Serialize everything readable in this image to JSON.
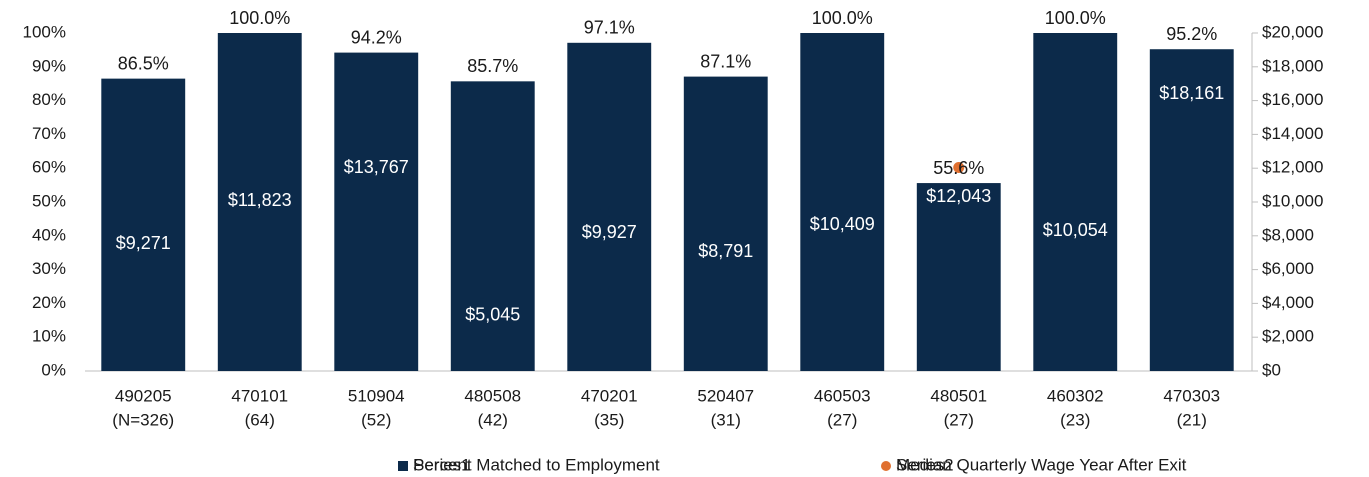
{
  "chart_data": {
    "type": "bar",
    "categories": [
      [
        "490205",
        "(N=326)"
      ],
      [
        "470101",
        "(64)"
      ],
      [
        "510904",
        "(52)"
      ],
      [
        "480508",
        "(42)"
      ],
      [
        "470201",
        "(35)"
      ],
      [
        "520407",
        "(31)"
      ],
      [
        "460503",
        "(27)"
      ],
      [
        "480501",
        "(27)"
      ],
      [
        "460302",
        "(23)"
      ],
      [
        "470303",
        "(21)"
      ]
    ],
    "series": [
      {
        "name": "Percent Matched to Employment",
        "placeholder_name": "Series1",
        "type": "bar",
        "color": "#0c2a4a",
        "values": [
          86.5,
          100,
          94.2,
          85.7,
          97.1,
          87.1,
          100,
          55.6,
          100,
          95.2
        ],
        "value_labels": [
          "86.5%",
          "100.0%",
          "94.2%",
          "85.7%",
          "97.1%",
          "87.1%",
          "100.0%",
          "55.6%",
          "100.0%",
          "95.2%"
        ]
      },
      {
        "name": "Median Quarterly Wage Year After Exit",
        "placeholder_name": "Series2",
        "type": "scatter",
        "axis": "y2",
        "color": "#e07030",
        "values": [
          9271,
          11823,
          13767,
          5045,
          9927,
          8791,
          10409,
          12043,
          10054,
          18161
        ],
        "value_labels": [
          "$9,271",
          "$11,823",
          "$13,767",
          "$5,045",
          "$9,927",
          "$8,791",
          "$10,409",
          "$12,043",
          "$10,054",
          "$18,161"
        ]
      }
    ],
    "ylim": [
      0,
      100
    ],
    "yticks": [
      {
        "value": 0,
        "label": "0%"
      },
      {
        "value": 10,
        "label": "10%"
      },
      {
        "value": 20,
        "label": "20%"
      },
      {
        "value": 30,
        "label": "30%"
      },
      {
        "value": 40,
        "label": "40%"
      },
      {
        "value": 50,
        "label": "50%"
      },
      {
        "value": 60,
        "label": "60%"
      },
      {
        "value": 70,
        "label": "70%"
      },
      {
        "value": 80,
        "label": "80%"
      },
      {
        "value": 90,
        "label": "90%"
      },
      {
        "value": 100,
        "label": "100%"
      }
    ],
    "y2lim": [
      0,
      20000
    ],
    "y2ticks": [
      {
        "value": 0,
        "label": "$0"
      },
      {
        "value": 2000,
        "label": "$2,000"
      },
      {
        "value": 4000,
        "label": "$4,000"
      },
      {
        "value": 6000,
        "label": "$6,000"
      },
      {
        "value": 8000,
        "label": "$8,000"
      },
      {
        "value": 10000,
        "label": "$10,000"
      },
      {
        "value": 12000,
        "label": "$12,000"
      },
      {
        "value": 14000,
        "label": "$14,000"
      },
      {
        "value": 16000,
        "label": "$16,000"
      },
      {
        "value": 18000,
        "label": "$18,000"
      },
      {
        "value": 20000,
        "label": "$20,000"
      }
    ],
    "grid": false,
    "legend": "bottom"
  }
}
